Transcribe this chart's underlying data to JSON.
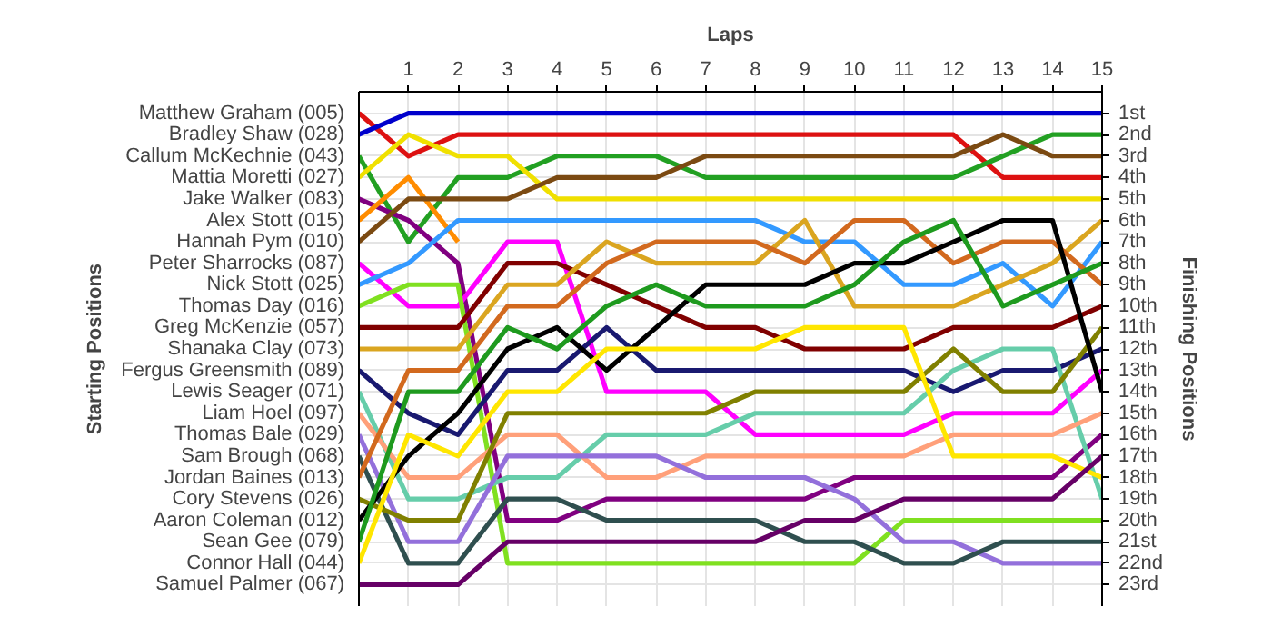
{
  "chart_data": {
    "type": "line",
    "xlabel": "Laps",
    "ylabel": "Finishing Positions",
    "annotations": [
      "Starting Positions"
    ],
    "x": [
      0,
      1,
      2,
      3,
      4,
      5,
      6,
      7,
      8,
      9,
      10,
      11,
      12,
      13,
      14,
      15
    ],
    "xlim": [
      0,
      15
    ],
    "xticks": [
      1,
      2,
      3,
      4,
      5,
      6,
      7,
      8,
      9,
      10,
      11,
      12,
      13,
      14,
      15
    ],
    "ylim": [
      24,
      0
    ],
    "yticks": [
      {
        "value": 1,
        "label": "1st"
      },
      {
        "value": 2,
        "label": "2nd"
      },
      {
        "value": 3,
        "label": "3rd"
      },
      {
        "value": 4,
        "label": "4th"
      },
      {
        "value": 5,
        "label": "5th"
      },
      {
        "value": 6,
        "label": "6th"
      },
      {
        "value": 7,
        "label": "7th"
      },
      {
        "value": 8,
        "label": "8th"
      },
      {
        "value": 9,
        "label": "9th"
      },
      {
        "value": 10,
        "label": "10th"
      },
      {
        "value": 11,
        "label": "11th"
      },
      {
        "value": 12,
        "label": "12th"
      },
      {
        "value": 13,
        "label": "13th"
      },
      {
        "value": 14,
        "label": "14th"
      },
      {
        "value": 15,
        "label": "15th"
      },
      {
        "value": 16,
        "label": "16th"
      },
      {
        "value": 17,
        "label": "17th"
      },
      {
        "value": 18,
        "label": "18th"
      },
      {
        "value": 19,
        "label": "19th"
      },
      {
        "value": 20,
        "label": "20th"
      },
      {
        "value": 21,
        "label": "21st"
      },
      {
        "value": 22,
        "label": "22nd"
      },
      {
        "value": 23,
        "label": "23rd"
      }
    ],
    "grid": true,
    "series": [
      {
        "name": "Matthew Graham (005)",
        "color": "#dd1111",
        "values": [
          1,
          3,
          2,
          2,
          2,
          2,
          2,
          2,
          2,
          2,
          2,
          2,
          2,
          4,
          4,
          4
        ]
      },
      {
        "name": "Bradley Shaw (028)",
        "color": "#0000cc",
        "values": [
          2,
          1,
          1,
          1,
          1,
          1,
          1,
          1,
          1,
          1,
          1,
          1,
          1,
          1,
          1,
          1
        ]
      },
      {
        "name": "Callum McKechnie (043)",
        "color": "#22a022",
        "values": [
          3,
          7,
          4,
          4,
          3,
          3,
          3,
          4,
          4,
          4,
          4,
          4,
          4,
          3,
          2,
          2
        ]
      },
      {
        "name": "Mattia Moretti (027)",
        "color": "#f0e000",
        "values": [
          4,
          2,
          3,
          3,
          5,
          5,
          5,
          5,
          5,
          5,
          5,
          5,
          5,
          5,
          5,
          5
        ]
      },
      {
        "name": "Jake Walker (083)",
        "color": "#800080",
        "values": [
          5,
          6,
          8,
          20,
          20,
          19,
          19,
          19,
          19,
          19,
          18,
          18,
          18,
          18,
          18,
          16
        ]
      },
      {
        "name": "Alex Stott (015)",
        "color": "#ff8c00",
        "values": [
          6,
          4,
          7,
          null,
          null,
          null,
          null,
          null,
          null,
          null,
          null,
          null,
          null,
          null,
          null,
          null
        ]
      },
      {
        "name": "Hannah Pym (010)",
        "color": "#7b4a12",
        "values": [
          7,
          5,
          5,
          5,
          4,
          4,
          4,
          3,
          3,
          3,
          3,
          3,
          3,
          2,
          3,
          3
        ]
      },
      {
        "name": "Peter Sharrocks (087)",
        "color": "#ff00ff",
        "values": [
          8,
          10,
          10,
          7,
          7,
          14,
          14,
          14,
          16,
          16,
          16,
          16,
          15,
          15,
          15,
          13
        ]
      },
      {
        "name": "Nick Stott (025)",
        "color": "#3399ff",
        "values": [
          9,
          8,
          6,
          6,
          6,
          6,
          6,
          6,
          6,
          7,
          7,
          9,
          9,
          8,
          10,
          7
        ]
      },
      {
        "name": "Thomas Day (016)",
        "color": "#80e020",
        "values": [
          10,
          9,
          9,
          22,
          22,
          22,
          22,
          22,
          22,
          22,
          22,
          20,
          20,
          20,
          20,
          20
        ]
      },
      {
        "name": "Greg McKenzie (057)",
        "color": "#800000",
        "values": [
          11,
          11,
          11,
          8,
          8,
          9,
          10,
          11,
          11,
          12,
          12,
          12,
          11,
          11,
          11,
          10
        ]
      },
      {
        "name": "Shanaka Clay (073)",
        "color": "#daa520",
        "values": [
          12,
          12,
          12,
          9,
          9,
          7,
          8,
          8,
          8,
          6,
          10,
          10,
          10,
          9,
          8,
          6
        ]
      },
      {
        "name": "Fergus Greensmith (089)",
        "color": "#191970",
        "values": [
          13,
          15,
          16,
          13,
          13,
          11,
          13,
          13,
          13,
          13,
          13,
          13,
          14,
          13,
          13,
          12
        ]
      },
      {
        "name": "Lewis Seager (071)",
        "color": "#66cdaa",
        "values": [
          14,
          19,
          19,
          18,
          18,
          16,
          16,
          16,
          15,
          15,
          15,
          15,
          13,
          12,
          12,
          19
        ]
      },
      {
        "name": "Liam Hoel (097)",
        "color": "#ffa07a",
        "values": [
          15,
          18,
          18,
          16,
          16,
          18,
          18,
          17,
          17,
          17,
          17,
          17,
          16,
          16,
          16,
          15
        ]
      },
      {
        "name": "Thomas Bale (029)",
        "color": "#9370db",
        "values": [
          16,
          21,
          21,
          17,
          17,
          17,
          17,
          18,
          18,
          18,
          19,
          21,
          21,
          22,
          22,
          22
        ]
      },
      {
        "name": "Sam Brough (068)",
        "color": "#2f4f4f",
        "values": [
          17,
          22,
          22,
          19,
          19,
          20,
          20,
          20,
          20,
          21,
          21,
          22,
          22,
          21,
          21,
          21
        ]
      },
      {
        "name": "Jordan Baines (013)",
        "color": "#d2691e",
        "values": [
          18,
          13,
          13,
          10,
          10,
          8,
          7,
          7,
          7,
          8,
          6,
          6,
          8,
          7,
          7,
          9
        ]
      },
      {
        "name": "Cory Stevens (026)",
        "color": "#808000",
        "values": [
          19,
          20,
          20,
          15,
          15,
          15,
          15,
          15,
          14,
          14,
          14,
          14,
          12,
          14,
          14,
          11
        ]
      },
      {
        "name": "Aaron Coleman (012)",
        "color": "#000000",
        "values": [
          20,
          17,
          15,
          12,
          11,
          13,
          11,
          9,
          9,
          9,
          8,
          8,
          7,
          6,
          6,
          14
        ]
      },
      {
        "name": "Sean Gee (079)",
        "color": "#1e9a1e",
        "values": [
          21,
          14,
          14,
          11,
          12,
          10,
          9,
          10,
          10,
          10,
          9,
          7,
          6,
          10,
          9,
          8
        ]
      },
      {
        "name": "Connor Hall (044)",
        "color": "#ffe600",
        "values": [
          22,
          16,
          17,
          14,
          14,
          12,
          12,
          12,
          12,
          11,
          11,
          11,
          17,
          17,
          17,
          18
        ]
      },
      {
        "name": "Samuel Palmer (067)",
        "color": "#660066",
        "values": [
          23,
          23,
          23,
          21,
          21,
          21,
          21,
          21,
          21,
          20,
          20,
          19,
          19,
          19,
          19,
          17
        ]
      }
    ]
  }
}
